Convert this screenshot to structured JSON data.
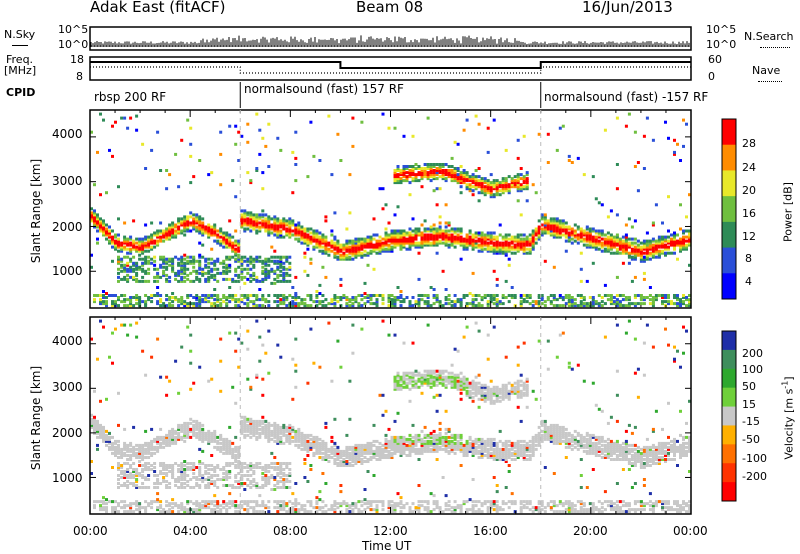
{
  "header": {
    "site": "Adak East (fitACF)",
    "beam": "Beam 08",
    "date": "16/Jun/2013"
  },
  "panels": {
    "nsky": {
      "label": "N.Sky",
      "ticks": [
        "10^5",
        "10^0"
      ]
    },
    "nsearch": {
      "label": "N.Search",
      "ticks": [
        "10^5",
        "10^0"
      ]
    },
    "freq": {
      "label_line1": "Freq.",
      "label_line2": "[MHz]",
      "ticks": [
        "18",
        "8"
      ]
    },
    "nave": {
      "label": "Nave",
      "ticks": [
        "60",
        "0"
      ]
    },
    "cpid": {
      "label": "CPID",
      "segments": [
        "rbsp 200 RF",
        "normalsound (fast) 157 RF",
        "normalsound (fast) -157 RF"
      ]
    }
  },
  "chart_data": [
    {
      "type": "heatmap",
      "ylabel": "Slant Range [km]",
      "ylim": [
        180,
        4600
      ],
      "yticks": [
        "4000",
        "3000",
        "2000",
        "1000"
      ],
      "xticks": [
        "00:00",
        "04:00",
        "08:00",
        "12:00",
        "16:00",
        "20:00",
        "00:00"
      ],
      "colorbar": {
        "label": "Power [dB]",
        "ticks": [
          "28",
          "24",
          "20",
          "16",
          "12",
          "8",
          "4"
        ],
        "colors": [
          "#0000ff",
          "#2a4fd8",
          "#2e8b57",
          "#6fbf3f",
          "#e8e82a",
          "#ff8c00",
          "#ff0000"
        ]
      },
      "features": [
        {
          "name": "main-echo-band",
          "x_hours": [
            6,
            8,
            10,
            12,
            14,
            16,
            17.5,
            18,
            20,
            22,
            24
          ],
          "range_km": [
            2100,
            1900,
            1400,
            1650,
            1750,
            1600,
            1550,
            2000,
            1700,
            1400,
            1700
          ]
        },
        {
          "name": "upper-echo-band",
          "x_hours": [
            12,
            14,
            16,
            17.5
          ],
          "range_km": [
            3100,
            3200,
            2800,
            3000
          ]
        },
        {
          "name": "early-echo-band",
          "x_hours": [
            0,
            1,
            2,
            3,
            4,
            5,
            6
          ],
          "range_km": [
            2200,
            1600,
            1500,
            1800,
            2100,
            1800,
            1400
          ]
        }
      ]
    },
    {
      "type": "heatmap",
      "ylabel": "Slant Range [km]",
      "ylim": [
        180,
        4600
      ],
      "yticks": [
        "4000",
        "3000",
        "2000",
        "1000"
      ],
      "xticks": [
        "00:00",
        "04:00",
        "08:00",
        "12:00",
        "16:00",
        "20:00",
        "00:00"
      ],
      "xlabel": "Time UT",
      "colorbar": {
        "label_text": "Velocity [m s",
        "label_exp": "-1",
        "label_end": "]",
        "ticks": [
          "200",
          "100",
          "50",
          "15",
          "-15",
          "-50",
          "-100",
          "-200"
        ],
        "colors": [
          "#1f2fa8",
          "#3e8e5c",
          "#2ea82e",
          "#6fd03a",
          "#c8c8c8",
          "#ffb000",
          "#ff7000",
          "#ff3300",
          "#ff0000"
        ]
      }
    }
  ]
}
